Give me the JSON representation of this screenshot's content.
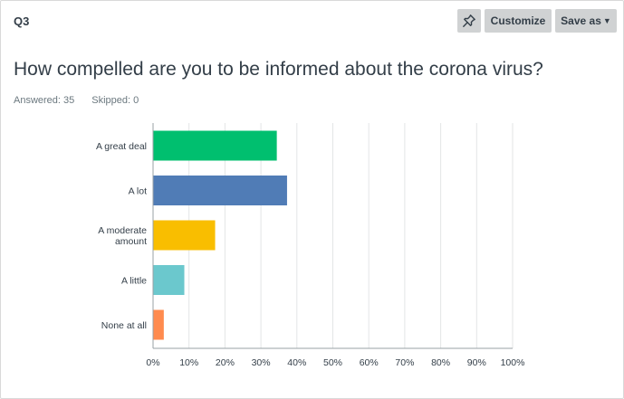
{
  "question": {
    "label": "Q3",
    "title": "How compelled are you to be informed about the corona virus?",
    "answered": "Answered: 35",
    "skipped": "Skipped: 0"
  },
  "toolbar": {
    "pin_icon": "pin-icon",
    "customize_label": "Customize",
    "save_label": "Save as",
    "save_caret_icon": "caret-down-icon"
  },
  "chart_data": {
    "type": "bar",
    "orientation": "horizontal",
    "categories": [
      [
        "A great deal"
      ],
      [
        "A lot"
      ],
      [
        "A moderate",
        "amount"
      ],
      [
        "A little"
      ],
      [
        "None at all"
      ]
    ],
    "values": [
      34.29,
      37.14,
      17.14,
      8.57,
      2.86
    ],
    "colors": [
      "#00bf6f",
      "#507cb6",
      "#f9be00",
      "#6bc8cd",
      "#ff8b4f"
    ],
    "xlim": [
      0,
      100
    ],
    "xticks": [
      "0%",
      "10%",
      "20%",
      "30%",
      "40%",
      "50%",
      "60%",
      "70%",
      "80%",
      "90%",
      "100%"
    ],
    "grid": true
  }
}
